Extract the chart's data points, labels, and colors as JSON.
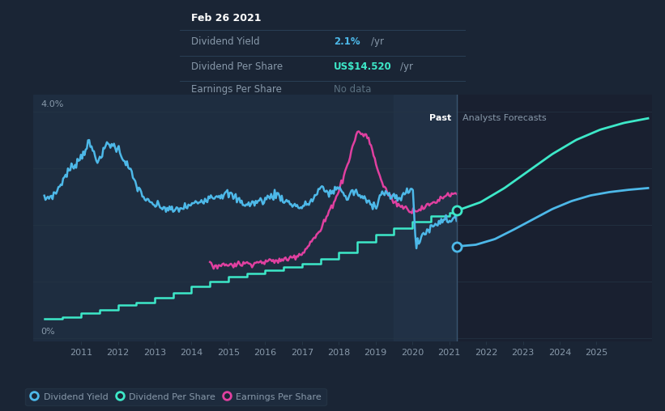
{
  "bg_color": "#1a2535",
  "plot_bg_dark": "#192030",
  "plot_bg_light": "#1e2d40",
  "grid_color": "#253545",
  "text_color": "#8899aa",
  "white": "#ffffff",
  "past_label": "Past",
  "forecast_label": "Analysts Forecasts",
  "divider_x": 2021.2,
  "highlight_start": 2019.5,
  "tooltip": {
    "date": "Feb 26 2021",
    "div_yield_label": "Dividend Yield",
    "div_yield_value": "2.1%",
    "div_yield_unit": "/yr",
    "div_per_share_label": "Dividend Per Share",
    "div_per_share_value": "US$14.520",
    "div_per_share_unit": "/yr",
    "eps_label": "Earnings Per Share",
    "eps_value": "No data"
  },
  "legend": [
    {
      "label": "Dividend Yield",
      "color": "#4db8e8"
    },
    {
      "label": "Dividend Per Share",
      "color": "#3de8c8"
    },
    {
      "label": "Earnings Per Share",
      "color": "#e040a0"
    }
  ],
  "div_yield_color": "#4db8e8",
  "div_per_share_color": "#3de8c8",
  "eps_color": "#e040a0",
  "xmin": 2009.7,
  "xmax": 2026.5,
  "ymin": -0.05,
  "ymax": 4.3,
  "xticks": [
    2011,
    2012,
    2013,
    2014,
    2015,
    2016,
    2017,
    2018,
    2019,
    2020,
    2021,
    2022,
    2023,
    2024,
    2025
  ],
  "dot_dps_y": 2.25,
  "dot_dy_y": 1.62
}
